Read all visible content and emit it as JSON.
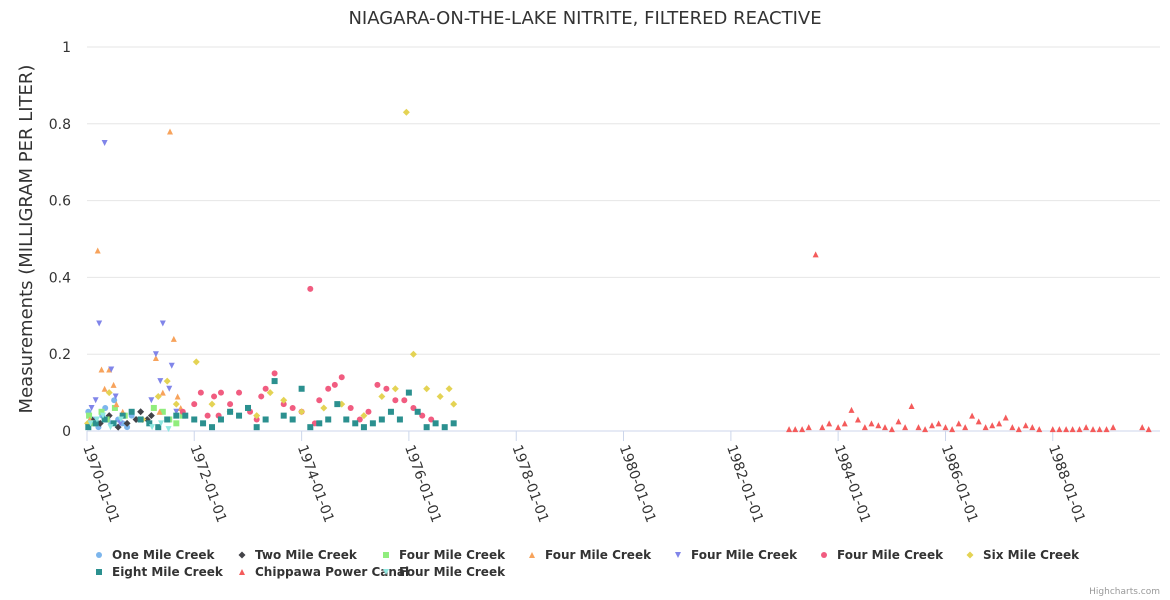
{
  "chart_data": {
    "type": "scatter",
    "title": "NIAGARA-ON-THE-LAKE NITRITE, FILTERED REACTIVE",
    "ylabel": "Measurements (MILLIGRAM PER LITER)",
    "xlabel": "",
    "ylim": [
      0,
      1
    ],
    "yticks": [
      "0",
      "0.2",
      "0.4",
      "0.6",
      "0.8",
      "1"
    ],
    "xlim": [
      "1970-01-01",
      "1989-12-31"
    ],
    "xticks": [
      "1970-01-01",
      "1972-01-01",
      "1974-01-01",
      "1976-01-01",
      "1978-01-01",
      "1980-01-01",
      "1982-01-01",
      "1984-01-01",
      "1986-01-01",
      "1988-01-01"
    ],
    "series": [
      {
        "name": "One Mile Creek",
        "color": "#7cb5ec",
        "symbol": "circle",
        "points": [
          [
            "1970-01-10",
            0.05
          ],
          [
            "1970-02-10",
            0.03
          ],
          [
            "1970-03-01",
            0.02
          ],
          [
            "1970-03-20",
            0.01
          ],
          [
            "1970-04-15",
            0.04
          ],
          [
            "1970-05-05",
            0.06
          ],
          [
            "1970-05-20",
            0.03
          ],
          [
            "1970-06-15",
            0.02
          ],
          [
            "1970-07-05",
            0.08
          ],
          [
            "1970-08-01",
            0.03
          ],
          [
            "1970-09-01",
            0.02
          ],
          [
            "1970-10-01",
            0.01
          ],
          [
            "1970-11-01",
            0.04
          ]
        ]
      },
      {
        "name": "Two Mile Creek",
        "color": "#434348",
        "symbol": "diamond",
        "points": [
          [
            "1970-02-01",
            0.03
          ],
          [
            "1970-04-01",
            0.02
          ],
          [
            "1970-06-01",
            0.04
          ],
          [
            "1970-08-01",
            0.01
          ],
          [
            "1970-10-01",
            0.02
          ],
          [
            "1970-12-01",
            0.03
          ],
          [
            "1971-01-01",
            0.05
          ],
          [
            "1971-02-15",
            0.03
          ],
          [
            "1971-03-15",
            0.04
          ]
        ]
      },
      {
        "name": "Four Mile Creek",
        "color": "#90ed7d",
        "symbol": "square",
        "points": [
          [
            "1970-01-15",
            0.04
          ],
          [
            "1970-02-20",
            0.02
          ],
          [
            "1970-04-10",
            0.05
          ],
          [
            "1970-05-15",
            0.03
          ],
          [
            "1970-07-10",
            0.06
          ],
          [
            "1970-09-15",
            0.04
          ],
          [
            "1971-04-01",
            0.06
          ],
          [
            "1971-06-01",
            0.05
          ],
          [
            "1971-07-15",
            0.03
          ],
          [
            "1971-09-01",
            0.02
          ],
          [
            "1971-10-15",
            0.04
          ]
        ]
      },
      {
        "name": "Four Mile Creek",
        "color": "#f7a35c",
        "symbol": "triangle",
        "points": [
          [
            "1970-01-20",
            0.03
          ],
          [
            "1970-03-15",
            0.47
          ],
          [
            "1970-04-10",
            0.16
          ],
          [
            "1970-05-01",
            0.11
          ],
          [
            "1970-06-01",
            0.16
          ],
          [
            "1970-07-01",
            0.12
          ],
          [
            "1970-07-20",
            0.07
          ],
          [
            "1970-09-01",
            0.05
          ],
          [
            "1971-04-15",
            0.19
          ],
          [
            "1971-06-01",
            0.1
          ],
          [
            "1971-07-20",
            0.78
          ],
          [
            "1971-08-15",
            0.24
          ],
          [
            "1971-09-10",
            0.09
          ],
          [
            "1971-10-01",
            0.06
          ],
          [
            "1971-05-10",
            0.05
          ]
        ]
      },
      {
        "name": "Four Mile Creek",
        "color": "#8085e9",
        "symbol": "triangle-down",
        "points": [
          [
            "1970-02-01",
            0.06
          ],
          [
            "1970-03-01",
            0.08
          ],
          [
            "1970-03-25",
            0.28
          ],
          [
            "1970-05-01",
            0.75
          ],
          [
            "1970-06-15",
            0.16
          ],
          [
            "1970-07-15",
            0.09
          ],
          [
            "1970-08-15",
            0.02
          ],
          [
            "1971-03-15",
            0.08
          ],
          [
            "1971-04-15",
            0.2
          ],
          [
            "1971-06-01",
            0.28
          ],
          [
            "1971-08-01",
            0.17
          ],
          [
            "1971-05-15",
            0.13
          ],
          [
            "1971-07-15",
            0.11
          ],
          [
            "1971-09-01",
            0.05
          ]
        ]
      },
      {
        "name": "Four Mile Creek",
        "color": "#f15c80",
        "symbol": "circle",
        "points": [
          [
            "1971-10-15",
            0.05
          ],
          [
            "1972-01-01",
            0.07
          ],
          [
            "1972-02-15",
            0.1
          ],
          [
            "1972-04-01",
            0.04
          ],
          [
            "1972-05-15",
            0.09
          ],
          [
            "1972-07-01",
            0.1
          ],
          [
            "1972-09-01",
            0.07
          ],
          [
            "1972-11-01",
            0.1
          ],
          [
            "1973-01-15",
            0.05
          ],
          [
            "1973-03-01",
            0.03
          ],
          [
            "1973-05-01",
            0.11
          ],
          [
            "1973-07-01",
            0.15
          ],
          [
            "1973-09-01",
            0.07
          ],
          [
            "1973-11-01",
            0.06
          ],
          [
            "1974-01-01",
            0.05
          ],
          [
            "1974-03-01",
            0.37
          ],
          [
            "1974-05-01",
            0.08
          ],
          [
            "1974-07-01",
            0.11
          ],
          [
            "1974-08-15",
            0.12
          ],
          [
            "1974-10-01",
            0.14
          ],
          [
            "1974-12-01",
            0.06
          ],
          [
            "1975-02-01",
            0.03
          ],
          [
            "1975-04-01",
            0.05
          ],
          [
            "1975-06-01",
            0.12
          ],
          [
            "1975-08-01",
            0.11
          ],
          [
            "1975-10-01",
            0.08
          ],
          [
            "1975-12-01",
            0.08
          ],
          [
            "1976-02-01",
            0.06
          ],
          [
            "1976-04-01",
            0.04
          ],
          [
            "1976-06-01",
            0.03
          ],
          [
            "1972-06-15",
            0.04
          ],
          [
            "1973-04-01",
            0.09
          ],
          [
            "1974-04-01",
            0.02
          ]
        ]
      },
      {
        "name": "Six Mile Creek",
        "color": "#e4d354",
        "symbol": "diamond",
        "points": [
          [
            "1970-01-05",
            0.02
          ],
          [
            "1970-06-01",
            0.1
          ],
          [
            "1970-09-01",
            0.04
          ],
          [
            "1971-01-15",
            0.03
          ],
          [
            "1971-05-01",
            0.09
          ],
          [
            "1971-07-01",
            0.13
          ],
          [
            "1971-09-01",
            0.07
          ],
          [
            "1972-01-15",
            0.18
          ],
          [
            "1972-05-01",
            0.07
          ],
          [
            "1972-09-01",
            0.05
          ],
          [
            "1973-03-01",
            0.04
          ],
          [
            "1973-06-01",
            0.1
          ],
          [
            "1973-09-01",
            0.08
          ],
          [
            "1974-01-01",
            0.05
          ],
          [
            "1974-06-01",
            0.06
          ],
          [
            "1974-10-01",
            0.07
          ],
          [
            "1975-03-01",
            0.04
          ],
          [
            "1975-07-01",
            0.09
          ],
          [
            "1975-10-01",
            0.11
          ],
          [
            "1975-12-15",
            0.83
          ],
          [
            "1976-02-01",
            0.2
          ],
          [
            "1976-05-01",
            0.11
          ],
          [
            "1976-08-01",
            0.09
          ],
          [
            "1976-11-01",
            0.07
          ],
          [
            "1976-10-01",
            0.11
          ]
        ]
      },
      {
        "name": "Eight Mile Creek",
        "color": "#2b908f",
        "symbol": "square",
        "points": [
          [
            "1970-01-10",
            0.01
          ],
          [
            "1970-03-01",
            0.02
          ],
          [
            "1970-05-01",
            0.03
          ],
          [
            "1970-07-01",
            0.02
          ],
          [
            "1970-09-01",
            0.04
          ],
          [
            "1970-11-01",
            0.05
          ],
          [
            "1971-01-01",
            0.03
          ],
          [
            "1971-03-01",
            0.02
          ],
          [
            "1971-05-01",
            0.01
          ],
          [
            "1971-07-01",
            0.03
          ],
          [
            "1971-09-01",
            0.04
          ],
          [
            "1971-11-01",
            0.04
          ],
          [
            "1972-01-01",
            0.03
          ],
          [
            "1972-03-01",
            0.02
          ],
          [
            "1972-05-01",
            0.01
          ],
          [
            "1972-07-01",
            0.03
          ],
          [
            "1972-09-01",
            0.05
          ],
          [
            "1972-11-01",
            0.04
          ],
          [
            "1973-01-01",
            0.06
          ],
          [
            "1973-03-01",
            0.01
          ],
          [
            "1973-05-01",
            0.03
          ],
          [
            "1973-07-01",
            0.13
          ],
          [
            "1973-09-01",
            0.04
          ],
          [
            "1973-11-01",
            0.03
          ],
          [
            "1974-01-01",
            0.11
          ],
          [
            "1974-03-01",
            0.01
          ],
          [
            "1974-05-01",
            0.02
          ],
          [
            "1974-07-01",
            0.03
          ],
          [
            "1974-09-01",
            0.07
          ],
          [
            "1974-11-01",
            0.03
          ],
          [
            "1975-01-01",
            0.02
          ],
          [
            "1975-03-01",
            0.01
          ],
          [
            "1975-05-01",
            0.02
          ],
          [
            "1975-07-01",
            0.03
          ],
          [
            "1975-09-01",
            0.05
          ],
          [
            "1975-11-01",
            0.03
          ],
          [
            "1976-01-01",
            0.1
          ],
          [
            "1976-03-01",
            0.05
          ],
          [
            "1976-05-01",
            0.01
          ],
          [
            "1976-07-01",
            0.02
          ],
          [
            "1976-09-01",
            0.01
          ],
          [
            "1976-11-01",
            0.02
          ]
        ]
      },
      {
        "name": "Chippawa Power Canal",
        "color": "#f45b5b",
        "symbol": "triangle",
        "points": [
          [
            "1983-02-01",
            0.005
          ],
          [
            "1983-03-15",
            0.005
          ],
          [
            "1983-05-01",
            0.005
          ],
          [
            "1983-06-15",
            0.01
          ],
          [
            "1983-08-01",
            0.46
          ],
          [
            "1983-09-15",
            0.01
          ],
          [
            "1983-11-01",
            0.02
          ],
          [
            "1984-01-01",
            0.01
          ],
          [
            "1984-02-15",
            0.02
          ],
          [
            "1984-04-01",
            0.055
          ],
          [
            "1984-05-15",
            0.03
          ],
          [
            "1984-07-01",
            0.01
          ],
          [
            "1984-08-15",
            0.02
          ],
          [
            "1984-10-01",
            0.015
          ],
          [
            "1984-11-15",
            0.01
          ],
          [
            "1985-01-01",
            0.005
          ],
          [
            "1985-02-15",
            0.025
          ],
          [
            "1985-04-01",
            0.01
          ],
          [
            "1985-05-15",
            0.065
          ],
          [
            "1985-07-01",
            0.01
          ],
          [
            "1985-08-15",
            0.005
          ],
          [
            "1985-10-01",
            0.015
          ],
          [
            "1985-11-15",
            0.02
          ],
          [
            "1986-01-01",
            0.01
          ],
          [
            "1986-02-15",
            0.005
          ],
          [
            "1986-04-01",
            0.02
          ],
          [
            "1986-05-15",
            0.01
          ],
          [
            "1986-07-01",
            0.04
          ],
          [
            "1986-08-15",
            0.025
          ],
          [
            "1986-10-01",
            0.01
          ],
          [
            "1986-11-15",
            0.015
          ],
          [
            "1987-01-01",
            0.02
          ],
          [
            "1987-02-15",
            0.035
          ],
          [
            "1987-04-01",
            0.01
          ],
          [
            "1987-05-15",
            0.005
          ],
          [
            "1987-07-01",
            0.015
          ],
          [
            "1987-08-15",
            0.01
          ],
          [
            "1987-10-01",
            0.005
          ],
          [
            "1988-01-01",
            0.005
          ],
          [
            "1988-02-15",
            0.005
          ],
          [
            "1988-04-01",
            0.005
          ],
          [
            "1988-05-15",
            0.005
          ],
          [
            "1988-07-01",
            0.005
          ],
          [
            "1988-08-15",
            0.01
          ],
          [
            "1988-10-01",
            0.005
          ],
          [
            "1988-11-15",
            0.005
          ],
          [
            "1989-01-01",
            0.005
          ],
          [
            "1989-02-15",
            0.01
          ],
          [
            "1989-09-01",
            0.01
          ],
          [
            "1989-10-15",
            0.005
          ]
        ]
      },
      {
        "name": "Four Mile Creek",
        "color": "#91e8e1",
        "symbol": "triangle-down",
        "points": [
          [
            "1970-01-25",
            0.02
          ],
          [
            "1970-03-10",
            0.03
          ],
          [
            "1970-04-20",
            0.04
          ],
          [
            "1970-06-10",
            0.01
          ],
          [
            "1970-08-20",
            0.03
          ],
          [
            "1971-03-20",
            0.01
          ],
          [
            "1971-05-20",
            0.02
          ],
          [
            "1971-07-10",
            0.005
          ]
        ]
      }
    ]
  },
  "credits": "Highcharts.com"
}
